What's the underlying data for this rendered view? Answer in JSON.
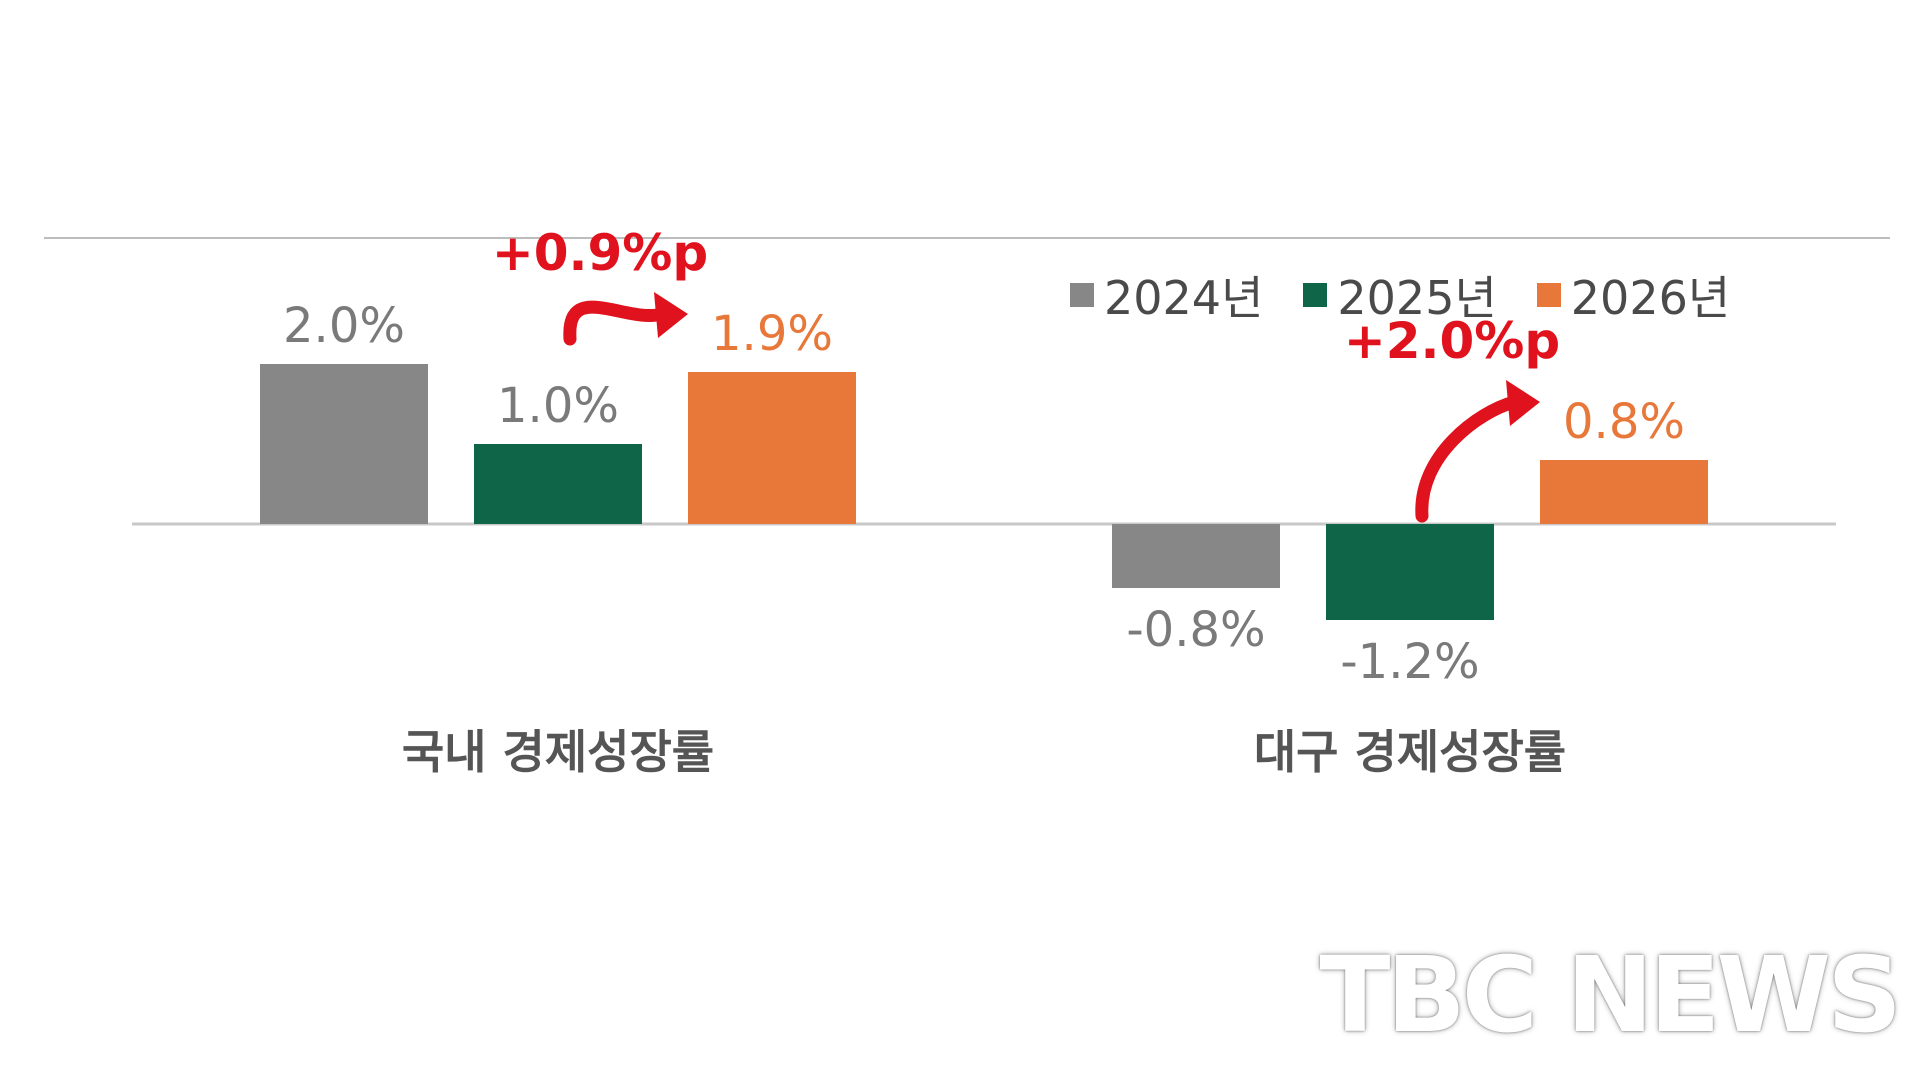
{
  "chart_data": {
    "type": "bar",
    "categories": [
      "국내 경제성장률",
      "대구 경제성장률"
    ],
    "series": [
      {
        "name": "2024년",
        "values": [
          2.0,
          -0.8
        ],
        "color": "#878787",
        "labels": [
          "2.0%",
          "-0.8%"
        ]
      },
      {
        "name": "2025년",
        "values": [
          1.0,
          -1.2
        ],
        "color": "#0e6548",
        "labels": [
          "1.0%",
          "-1.2%"
        ]
      },
      {
        "name": "2026년",
        "values": [
          1.9,
          0.8
        ],
        "color": "#e8783a",
        "labels": [
          "1.9%",
          "0.8%"
        ]
      }
    ],
    "annotations": [
      {
        "category": "국내 경제성장률",
        "text": "+0.9%p",
        "from_series": "2025년",
        "to_series": "2026년",
        "color": "#e0121d"
      },
      {
        "category": "대구 경제성장률",
        "text": "+2.0%p",
        "from_series": "2025년",
        "to_series": "2026년",
        "color": "#e0121d"
      }
    ],
    "legend_position": "top-right",
    "grid": false
  },
  "watermark": "TBC NEWS"
}
